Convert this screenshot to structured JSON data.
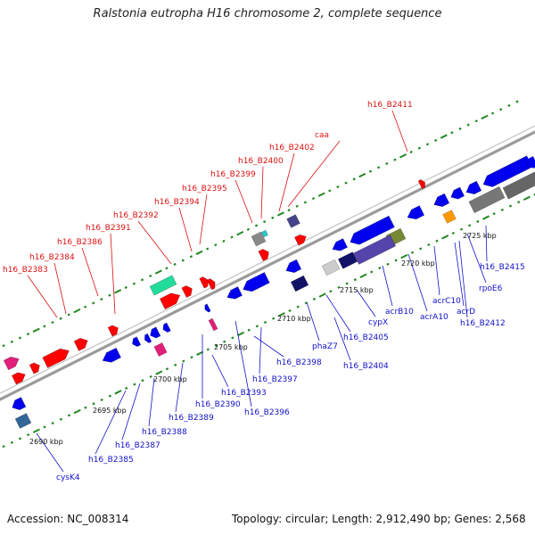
{
  "title": "Ralstonia eutropha H16 chromosome 2, complete sequence",
  "footer": {
    "accession": "Accession: NC_008314",
    "summary": "Topology: circular; Length: 2,912,490 bp; Genes: 2,568"
  },
  "colors": {
    "forward": "#ff0000",
    "reverse": "#0000ee",
    "backbone": "#999999",
    "tick": "#228822",
    "forward_label": "#dd1111",
    "reverse_label": "#1111cc"
  },
  "scale_labels": [
    "2690 kbp",
    "2695 kbp",
    "2700 kbp",
    "2705 kbp",
    "2710 kbp",
    "2715 kbp",
    "2720 kbp",
    "2725 kbp"
  ],
  "forward_labels": [
    "h16_B2383",
    "h16_B2384",
    "h16_B2386",
    "h16_B2391",
    "h16_B2392",
    "h16_B2394",
    "h16_B2395",
    "h16_B2399",
    "h16_B2400",
    "h16_B2402",
    "caa",
    "h16_B2411"
  ],
  "reverse_labels": [
    "cysK4",
    "h16_B2385",
    "h16_B2387",
    "h16_B2388",
    "h16_B2389",
    "h16_B2390",
    "h16_B2393",
    "h16_B2396",
    "h16_B2397",
    "h16_B2398",
    "phaZ7",
    "h16_B2404",
    "h16_B2405",
    "cypX",
    "acrB10",
    "acrA10",
    "acrC10",
    "acrD",
    "h16_B2412",
    "rpoE6",
    "h16_B2415"
  ]
}
